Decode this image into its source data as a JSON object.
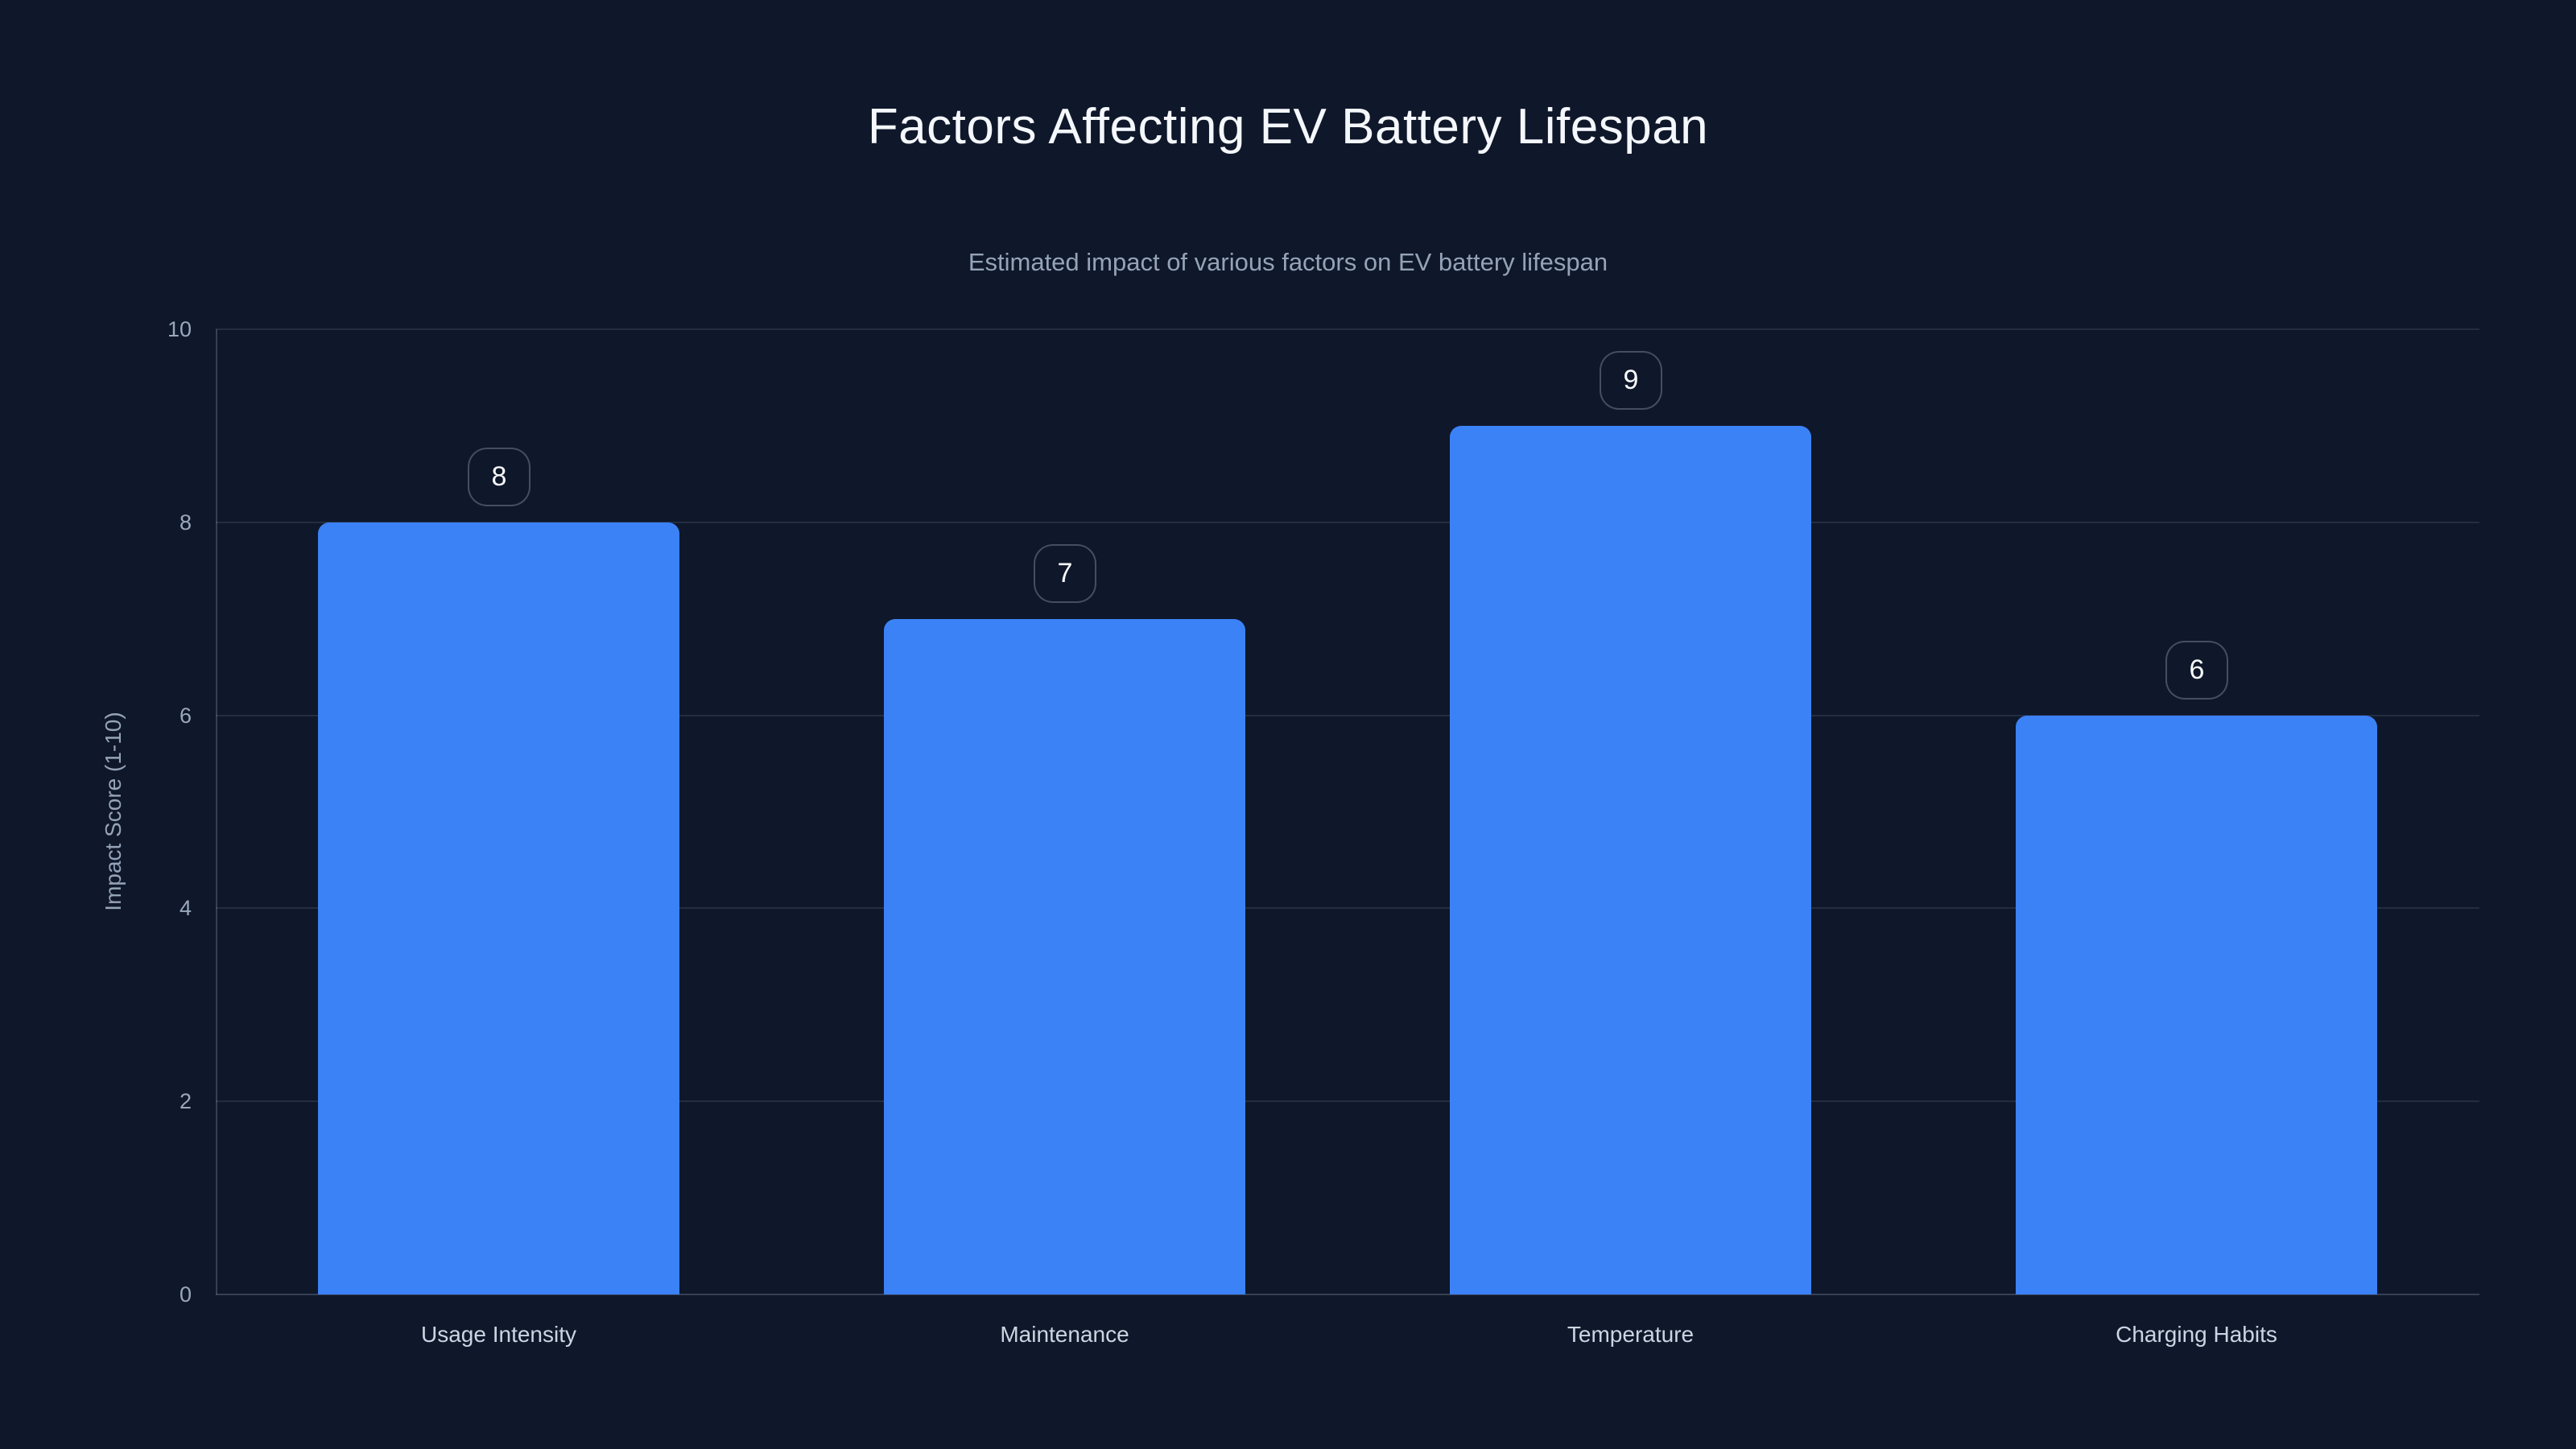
{
  "page": {
    "background_color": "#0f172a"
  },
  "header": {
    "title": "Factors Affecting EV Battery Lifespan",
    "subtitle": "Estimated impact of various factors on EV battery lifespan"
  },
  "chart_data": {
    "type": "bar",
    "title": "Factors Affecting EV Battery Lifespan",
    "subtitle": "Estimated impact of various factors on EV battery lifespan",
    "categories": [
      "Usage Intensity",
      "Maintenance",
      "Temperature",
      "Charging Habits"
    ],
    "values": [
      8,
      7,
      9,
      6
    ],
    "value_labels": [
      "8",
      "7",
      "9",
      "6"
    ],
    "xlabel": "",
    "ylabel": "Impact Score (1-10)",
    "ylim": [
      0,
      10
    ],
    "yticks": [
      0,
      2,
      4,
      6,
      8,
      10
    ],
    "ytick_labels": [
      "0",
      "2",
      "4",
      "6",
      "8",
      "10"
    ],
    "grid": true,
    "legend": false,
    "bar_color": "#3b82f6",
    "title_color": "#f4f7fb",
    "subtitle_color": "#94a3b8",
    "tick_color": "#9aa8bd",
    "xlabel_color": "#cbd5e1",
    "gridline_color": "rgba(148,163,184,0.16)",
    "axisline_color": "rgba(148,163,184,0.30)",
    "badge_text_color": "#f8fafc"
  }
}
